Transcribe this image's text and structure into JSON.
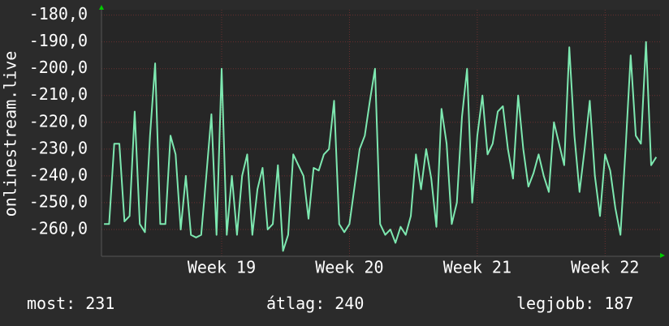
{
  "chart_data": {
    "type": "line",
    "y_label": "onlinestream.live",
    "xlim": [
      18.06,
      22.43
    ],
    "xticks": [
      {
        "value": 19,
        "label": "Week 19"
      },
      {
        "value": 20,
        "label": "Week 20"
      },
      {
        "value": 21,
        "label": "Week 21"
      },
      {
        "value": 22,
        "label": "Week 22"
      }
    ],
    "ylim": [
      -270,
      -178
    ],
    "yticks": [
      {
        "value": -180,
        "label": "-180,0"
      },
      {
        "value": -190,
        "label": "-190,0"
      },
      {
        "value": -200,
        "label": "-200,0"
      },
      {
        "value": -210,
        "label": "-210,0"
      },
      {
        "value": -220,
        "label": "-220,0"
      },
      {
        "value": -230,
        "label": "-230,0"
      },
      {
        "value": -240,
        "label": "-240,0"
      },
      {
        "value": -250,
        "label": "-250,0"
      },
      {
        "value": -260,
        "label": "-260,0"
      }
    ],
    "grid": true,
    "x": [
      18.08,
      18.12,
      18.16,
      18.2,
      18.24,
      18.28,
      18.32,
      18.36,
      18.4,
      18.44,
      18.48,
      18.52,
      18.56,
      18.6,
      18.64,
      18.68,
      18.72,
      18.76,
      18.8,
      18.84,
      18.88,
      18.92,
      18.96,
      19.0,
      19.04,
      19.08,
      19.12,
      19.16,
      19.2,
      19.24,
      19.28,
      19.32,
      19.36,
      19.4,
      19.44,
      19.48,
      19.52,
      19.56,
      19.6,
      19.64,
      19.68,
      19.72,
      19.76,
      19.8,
      19.84,
      19.88,
      19.92,
      19.96,
      20.0,
      20.04,
      20.08,
      20.12,
      20.16,
      20.2,
      20.24,
      20.28,
      20.32,
      20.36,
      20.4,
      20.44,
      20.48,
      20.52,
      20.56,
      20.6,
      20.64,
      20.68,
      20.72,
      20.76,
      20.8,
      20.84,
      20.88,
      20.92,
      20.96,
      21.0,
      21.04,
      21.08,
      21.12,
      21.16,
      21.2,
      21.24,
      21.28,
      21.32,
      21.36,
      21.4,
      21.44,
      21.48,
      21.52,
      21.56,
      21.6,
      21.64,
      21.68,
      21.72,
      21.76,
      21.8,
      21.84,
      21.88,
      21.92,
      21.96,
      22.0,
      22.04,
      22.08,
      22.12,
      22.16,
      22.2,
      22.24,
      22.28,
      22.32,
      22.36,
      22.4
    ],
    "series": [
      {
        "color": "#7de8b0",
        "values": [
          -258,
          -258,
          -228,
          -228,
          -257,
          -255,
          -216,
          -258,
          -261,
          -225,
          -198,
          -258,
          -258,
          -225,
          -232,
          -260,
          -240,
          -262,
          -263,
          -262,
          -240,
          -217,
          -262,
          -200,
          -262,
          -240,
          -262,
          -240,
          -232,
          -262,
          -245,
          -237,
          -260,
          -258,
          -236,
          -268,
          -262,
          -232,
          -236,
          -240,
          -256,
          -237,
          -238,
          -232,
          -230,
          -212,
          -258,
          -261,
          -258,
          -244,
          -230,
          -225,
          -212,
          -200,
          -258,
          -262,
          -260,
          -265,
          -259,
          -262,
          -255,
          -232,
          -245,
          -230,
          -241,
          -259,
          -215,
          -228,
          -258,
          -250,
          -218,
          -200,
          -250,
          -225,
          -210,
          -232,
          -228,
          -216,
          -214,
          -230,
          -241,
          -210,
          -230,
          -244,
          -239,
          -232,
          -240,
          -246,
          -220,
          -228,
          -236,
          -192,
          -225,
          -246,
          -230,
          -212,
          -240,
          -255,
          -232,
          -238,
          -252,
          -262,
          -230,
          -195,
          -225,
          -228,
          -190,
          -236,
          -233
        ]
      }
    ],
    "stats": [
      {
        "label": "most:",
        "value": 231
      },
      {
        "label": "átlag:",
        "value": 240
      },
      {
        "label": "legjobb:",
        "value": 187
      }
    ]
  }
}
